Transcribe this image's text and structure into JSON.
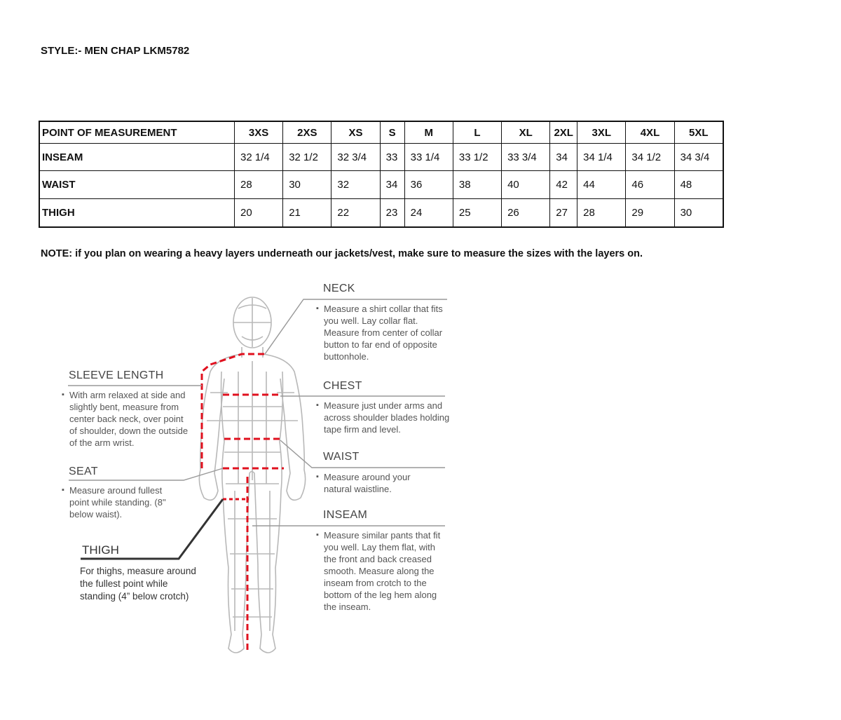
{
  "title": "STYLE:- MEN CHAP LKM5782",
  "table": {
    "headers": [
      "POINT OF MEASUREMENT",
      "3XS",
      "2XS",
      "XS",
      "S",
      "M",
      "L",
      "XL",
      "2XL",
      "3XL",
      "4XL",
      "5XL"
    ],
    "rows": [
      [
        "INSEAM",
        "32 1/4",
        "32 1/2",
        "32 3/4",
        "33",
        "33 1/4",
        "33 1/2",
        "33 3/4",
        "34",
        "34 1/4",
        "34 1/2",
        "34 3/4"
      ],
      [
        "WAIST",
        "28",
        "30",
        "32",
        "34",
        "36",
        "38",
        "40",
        "42",
        "44",
        "46",
        "48"
      ],
      [
        "THIGH",
        "20",
        "21",
        "22",
        "23",
        "24",
        "25",
        "26",
        "27",
        "28",
        "29",
        "30"
      ]
    ]
  },
  "note": "NOTE: if you plan on wearing a heavy layers underneath our jackets/vest, make sure to measure the sizes with the layers on.",
  "guide": {
    "neck": {
      "heading": "NECK",
      "text": "Measure a shirt collar that fits you well. Lay collar flat. Measure from center of collar button to far end of opposite buttonhole."
    },
    "sleeve": {
      "heading": "SLEEVE LENGTH",
      "text": "With arm relaxed at side and slightly bent, measure from center back neck, over point of shoulder, down the outside of the arm wrist."
    },
    "chest": {
      "heading": "CHEST",
      "text": "Measure just under arms and across shoulder blades holding tape firm and level."
    },
    "seat": {
      "heading": "SEAT",
      "text": "Measure around fullest point while standing. (8\" below waist)."
    },
    "waist": {
      "heading": "WAIST",
      "text": "Measure around your natural waistline."
    },
    "inseam": {
      "heading": "INSEAM",
      "text": "Measure similar pants that fit you well. Lay them flat, with the front and back creased smooth. Measure along the inseam from crotch to the bottom of the leg hem along the inseam."
    },
    "thigh": {
      "heading": "THIGH",
      "text": "For thighs, measure around the fullest point while standing (4” below crotch)"
    }
  },
  "colors": {
    "measure_line": "#e0101e",
    "figure": "#b8b8b8"
  }
}
